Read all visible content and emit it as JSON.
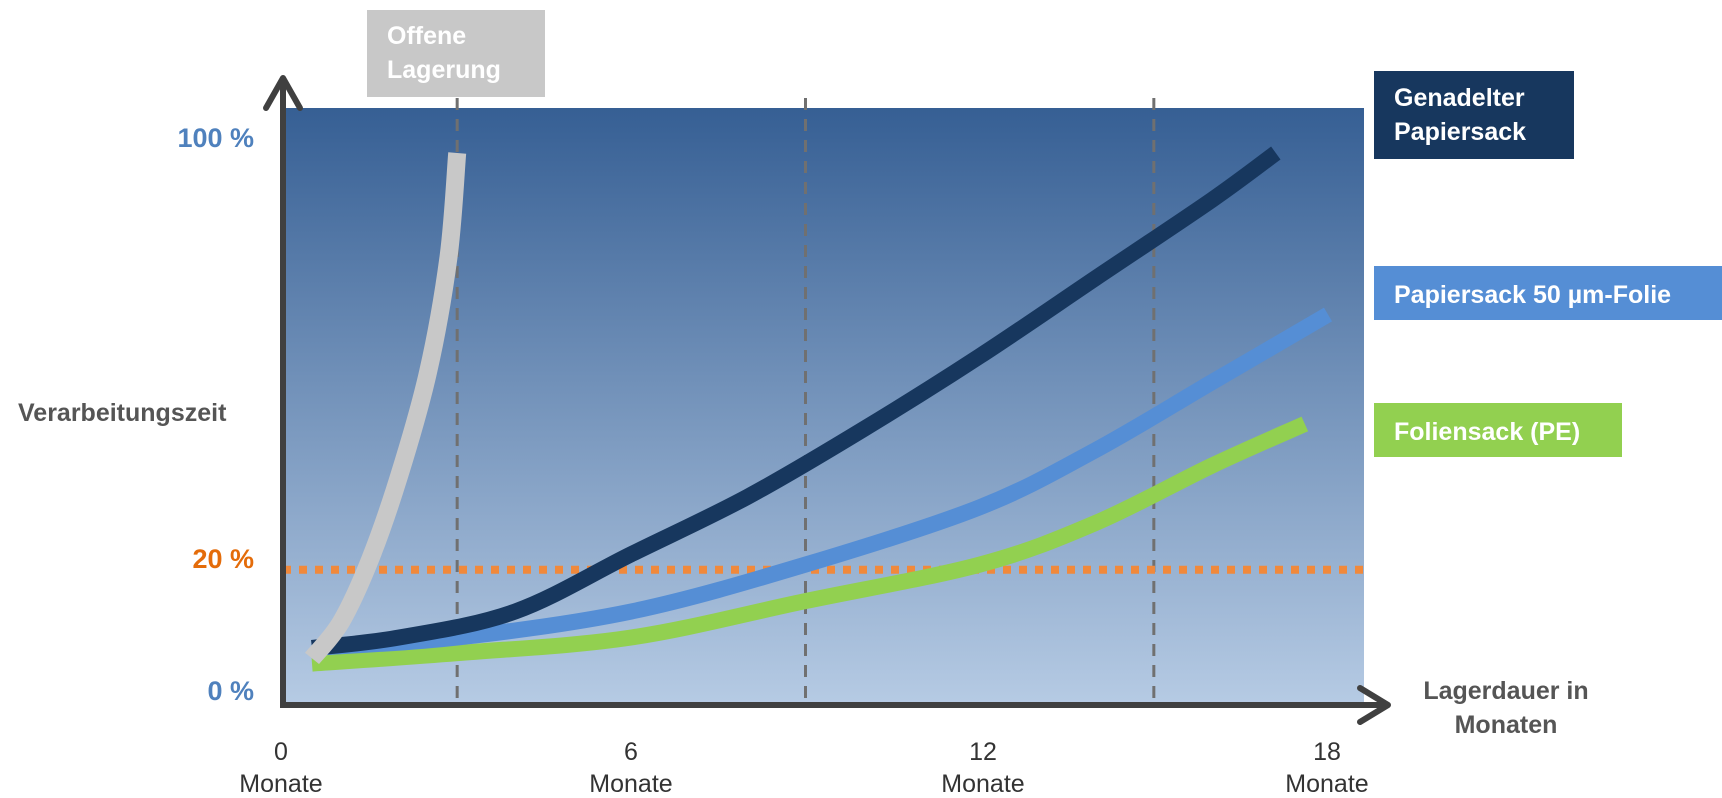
{
  "colors": {
    "bg_top": "#365f94",
    "bg_bottom": "#b6cbe4",
    "open_storage": "#c8c8c8",
    "needled_paper_sack": "#17375e",
    "paper_sack_film": "#558ed5",
    "film_sack_pe": "#92d050",
    "threshold": "#f0893c",
    "label_blue": "#4f81bd",
    "label_orange": "#e46c0a",
    "axis": "#404040"
  },
  "chart_data": {
    "type": "line",
    "ylabel": "Verarbeitungszeit",
    "xlabel": "Lagerdauer in Monaten",
    "xlabel_lines": [
      "Lagerdauer in",
      "Monaten"
    ],
    "xlim": [
      0,
      18
    ],
    "ylim": [
      0,
      100
    ],
    "grid": false,
    "x_ticks": [
      {
        "value": 0,
        "num": "0",
        "unit": "Monate"
      },
      {
        "value": 6,
        "num": "6",
        "unit": "Monate"
      },
      {
        "value": 12,
        "num": "12",
        "unit": "Monate"
      },
      {
        "value": 18,
        "num": "18",
        "unit": "Monate"
      }
    ],
    "y_ticks": [
      {
        "value": 100,
        "label": "100 %",
        "color": "#4f81bd"
      },
      {
        "value": 20,
        "label": "20 %",
        "color": "#e46c0a"
      },
      {
        "value": 0,
        "label": "0 %",
        "color": "#4f81bd"
      }
    ],
    "vertical_markers": [
      3,
      9,
      15
    ],
    "threshold": {
      "y": 20
    },
    "series": [
      {
        "name": "Offene Lagerung",
        "name_lines": [
          "Offene",
          "Lagerung"
        ],
        "color": "#c8c8c8",
        "points": [
          [
            0.5,
            3
          ],
          [
            1.0,
            10
          ],
          [
            1.5,
            22
          ],
          [
            2.0,
            38
          ],
          [
            2.5,
            58
          ],
          [
            2.85,
            80
          ],
          [
            3.0,
            100
          ]
        ]
      },
      {
        "name": "Genadelter Papiersack",
        "name_lines": [
          "Genadelter",
          "Papiersack"
        ],
        "color": "#17375e",
        "points": [
          [
            0.5,
            5
          ],
          [
            2,
            7
          ],
          [
            4,
            12
          ],
          [
            6,
            23
          ],
          [
            8,
            34
          ],
          [
            10,
            47
          ],
          [
            12,
            61
          ],
          [
            14,
            76
          ],
          [
            16,
            91
          ],
          [
            17.1,
            100
          ]
        ]
      },
      {
        "name": "Papiersack 50 µm-Folie",
        "name_lines": [
          "Papiersack 50 µm-Folie"
        ],
        "color": "#558ed5",
        "points": [
          [
            0.5,
            5
          ],
          [
            3,
            7
          ],
          [
            6,
            12
          ],
          [
            9,
            21
          ],
          [
            12,
            32
          ],
          [
            14,
            43
          ],
          [
            16,
            56
          ],
          [
            18,
            69
          ]
        ]
      },
      {
        "name": "Foliensack (PE)",
        "name_lines": [
          "Foliensack (PE)"
        ],
        "color": "#92d050",
        "points": [
          [
            0.5,
            2
          ],
          [
            3,
            4
          ],
          [
            6,
            7
          ],
          [
            9,
            14
          ],
          [
            12,
            21
          ],
          [
            14,
            29
          ],
          [
            16,
            40
          ],
          [
            17.6,
            48
          ]
        ]
      }
    ]
  }
}
